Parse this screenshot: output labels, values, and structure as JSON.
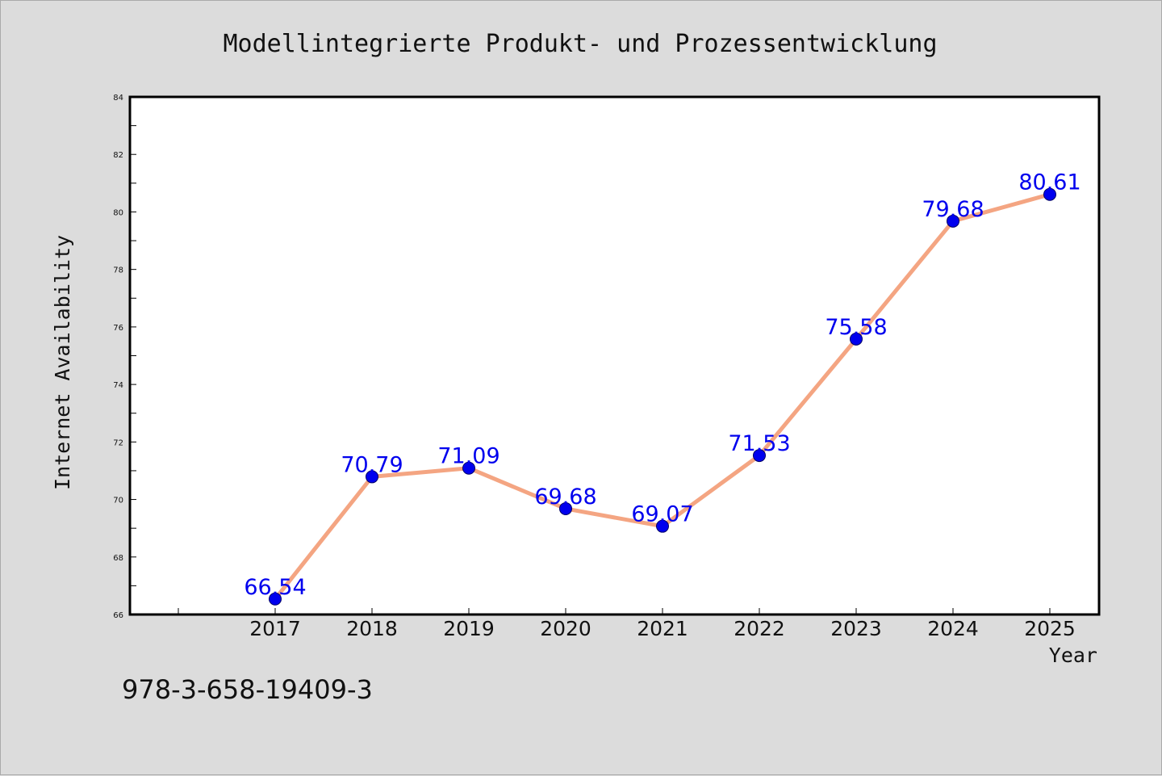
{
  "chart_data": {
    "type": "line",
    "title": "Modellintegrierte Produkt- und Prozessentwicklung",
    "xlabel": "Year",
    "ylabel": "Internet Availability",
    "categories": [
      "2017",
      "2018",
      "2019",
      "2020",
      "2021",
      "2022",
      "2023",
      "2024",
      "2025"
    ],
    "series": [
      {
        "values": [
          66.54,
          70.79,
          71.09,
          69.68,
          69.07,
          71.53,
          75.58,
          79.68,
          80.61
        ],
        "labels": [
          "66.54",
          "70.79",
          "71.09",
          "69.68",
          "69.07",
          "71.53",
          "75.58",
          "79.68",
          "80.61"
        ]
      }
    ],
    "ylim": [
      66,
      84
    ],
    "yticks": [
      "66",
      "68",
      "70",
      "72",
      "74",
      "76",
      "78",
      "80",
      "82",
      "84"
    ],
    "grid": false,
    "legend": "none",
    "colors": {
      "line": "#f4a582",
      "marker": "#0000ee",
      "label": "#0000ee",
      "background": "#dcdcdc",
      "plot_background": "#ffffff"
    }
  },
  "footnote": "978-3-658-19409-3"
}
